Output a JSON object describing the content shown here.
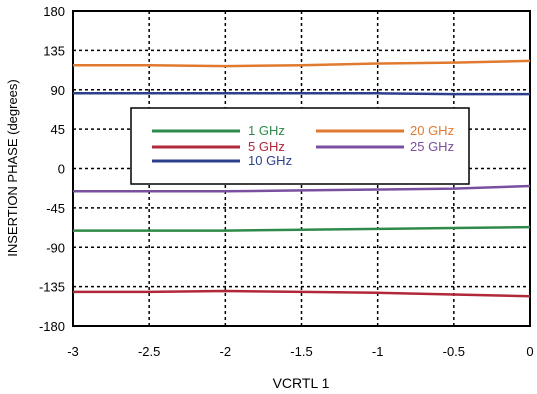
{
  "chart_data": {
    "type": "line",
    "xlabel": "VCRTL 1",
    "ylabel": "INSERTION PHASE (degrees)",
    "xlim": [
      -3,
      0
    ],
    "ylim": [
      -180,
      180
    ],
    "x_ticks": [
      -3,
      -2.5,
      -2,
      -1.5,
      -1,
      -0.5,
      0
    ],
    "x_tick_labels": [
      "-3",
      "-2.5",
      "-2",
      "-1.5",
      "-1",
      "-0.5",
      "0"
    ],
    "y_ticks": [
      180,
      135,
      90,
      45,
      0,
      -45,
      -90,
      -135,
      -180
    ],
    "y_tick_labels": [
      "180",
      "135",
      "90",
      "45",
      "0",
      "-45",
      "-90",
      "-135",
      "-180"
    ],
    "grid": "dotted",
    "legend_position": "center",
    "series": [
      {
        "name": "1 GHz",
        "color": "#2e8a4a",
        "x": [
          -3,
          -2.5,
          -2,
          -1.5,
          -1,
          -0.5,
          0
        ],
        "y": [
          -71,
          -71,
          -71,
          -70,
          -69,
          -68,
          -67
        ]
      },
      {
        "name": "5 GHz",
        "color": "#b0283a",
        "x": [
          -3,
          -2.5,
          -2,
          -1.5,
          -1,
          -0.5,
          0
        ],
        "y": [
          -141,
          -141,
          -140,
          -141,
          -142,
          -144,
          -146
        ]
      },
      {
        "name": "10 GHz",
        "color": "#2c3f8c",
        "x": [
          -3,
          -2.5,
          -2,
          -1.5,
          -1,
          -0.5,
          0
        ],
        "y": [
          86,
          86,
          86,
          86,
          86,
          85,
          85
        ]
      },
      {
        "name": "20 GHz",
        "color": "#e07a2e",
        "x": [
          -3,
          -2.5,
          -2,
          -1.5,
          -1,
          -0.5,
          0
        ],
        "y": [
          118,
          118,
          117,
          118,
          120,
          121,
          123
        ]
      },
      {
        "name": "25 GHz",
        "color": "#7a4fa0",
        "x": [
          -3,
          -2.5,
          -2,
          -1.5,
          -1,
          -0.5,
          0
        ],
        "y": [
          -26,
          -26,
          -26,
          -25,
          -24,
          -23,
          -20
        ]
      }
    ]
  }
}
